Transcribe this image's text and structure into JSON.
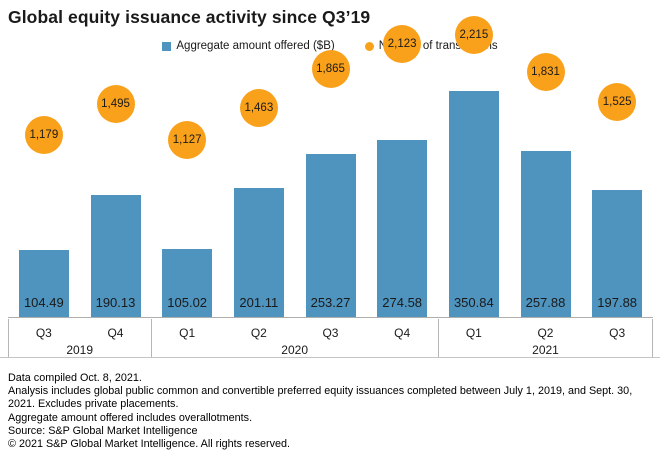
{
  "chart_data": {
    "type": "bar",
    "title": "Global equity issuance activity since Q3’19",
    "categories": [
      "Q3 2019",
      "Q4 2019",
      "Q1 2020",
      "Q2 2020",
      "Q3 2020",
      "Q4 2020",
      "Q1 2021",
      "Q2 2021",
      "Q3 2021"
    ],
    "quarters": [
      "Q3",
      "Q4",
      "Q1",
      "Q2",
      "Q3",
      "Q4",
      "Q1",
      "Q2",
      "Q3"
    ],
    "year_groups": [
      {
        "label": "2019",
        "span": 2
      },
      {
        "label": "2020",
        "span": 4
      },
      {
        "label": "2021",
        "span": 3
      }
    ],
    "series": [
      {
        "name": "Aggregate amount offered ($B)",
        "type": "bar",
        "color": "#4E94BE",
        "values": [
          104.49,
          190.13,
          105.02,
          201.11,
          253.27,
          274.58,
          350.84,
          257.88,
          197.88
        ],
        "labels": [
          "104.49",
          "190.13",
          "105.02",
          "201.11",
          "253.27",
          "274.58",
          "350.84",
          "257.88",
          "197.88"
        ]
      },
      {
        "name": "Number of transactions",
        "type": "point",
        "color": "#F9A11B",
        "values": [
          1179,
          1495,
          1127,
          1463,
          1865,
          2123,
          2215,
          1831,
          1525
        ],
        "labels": [
          "1,179",
          "1,495",
          "1,127",
          "1,463",
          "1,865",
          "2,123",
          "2,215",
          "1,831",
          "1,525"
        ]
      }
    ],
    "legend_position": "top",
    "grid": false,
    "value_labels_position": "inside-bar-bottom"
  },
  "footer": {
    "notes": [
      "Data compiled Oct. 8, 2021.",
      "Analysis includes global public common and convertible preferred equity issuances completed between July 1, 2019, and Sept. 30, 2021. Excludes private placements.",
      "Aggregate amount offered includes overallotments.",
      "Source: S&P Global Market Intelligence",
      "© 2021 S&P Global Market Intelligence. All rights reserved."
    ]
  }
}
